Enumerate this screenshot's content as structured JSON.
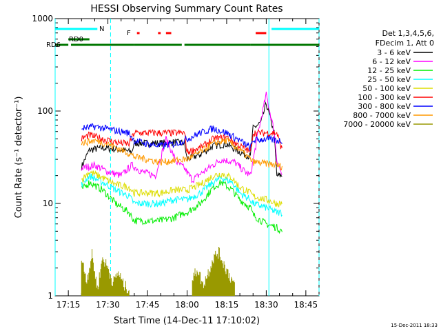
{
  "chart_data": {
    "type": "line",
    "title": "HESSI Observing Summary Count Rates",
    "xlabel": "Start Time (14-Dec-11 17:10:02)",
    "ylabel": "Count Rate (s⁻¹ detector⁻¹)",
    "yscale": "log",
    "ylim": [
      1,
      1000
    ],
    "xlim": [
      "17:10",
      "18:50"
    ],
    "x_ticks": [
      "17:15",
      "17:30",
      "17:45",
      "18:00",
      "18:15",
      "18:30",
      "18:45"
    ],
    "y_ticks": [
      "1",
      "10",
      "100",
      "1000"
    ],
    "x_tick_minutes": [
      1035,
      1050,
      1065,
      1080,
      1095,
      1110,
      1125
    ],
    "data_interval": [
      "17:20",
      "18:37"
    ],
    "legend_title": [
      "Det 1,3,4,5,6,",
      "FDecim 1, Att 0"
    ],
    "series": [
      {
        "name": "3 - 6 keV",
        "color": "#000000",
        "x": [
          "17:20",
          "17:23",
          "17:28",
          "17:35",
          "17:39",
          "17:40",
          "17:45",
          "17:50",
          "17:55",
          "17:59",
          "18:00",
          "18:05",
          "18:10",
          "18:15",
          "18:20",
          "18:24",
          "18:25",
          "18:28",
          "18:30",
          "18:33",
          "18:34",
          "18:36"
        ],
        "y": [
          25,
          38,
          40,
          38,
          36,
          45,
          45,
          45,
          46,
          45,
          30,
          34,
          42,
          44,
          36,
          32,
          65,
          75,
          120,
          58,
          20,
          20
        ]
      },
      {
        "name": "6 - 12 keV",
        "color": "#ff00ff",
        "x": [
          "17:20",
          "17:25",
          "17:30",
          "17:35",
          "17:39",
          "17:43",
          "17:48",
          "17:52",
          "17:56",
          "17:59",
          "18:02",
          "18:08",
          "18:13",
          "18:18",
          "18:22",
          "18:24",
          "18:27",
          "18:30",
          "18:33",
          "18:34",
          "18:36"
        ],
        "y": [
          24,
          26,
          22,
          20,
          26,
          22,
          20,
          50,
          28,
          24,
          18,
          24,
          30,
          28,
          22,
          20,
          60,
          150,
          60,
          30,
          20
        ]
      },
      {
        "name": "12 - 25 keV",
        "color": "#00ee00",
        "x": [
          "17:20",
          "17:23",
          "17:28",
          "17:33",
          "17:38",
          "17:40",
          "17:45",
          "17:50",
          "17:55",
          "17:59",
          "18:00",
          "18:05",
          "18:10",
          "18:13",
          "18:17",
          "18:20",
          "18:24",
          "18:25",
          "18:30",
          "18:34",
          "18:36"
        ],
        "y": [
          14,
          17,
          14,
          10,
          8,
          6.5,
          6.5,
          6.5,
          7,
          8,
          8,
          10,
          15,
          17,
          14,
          11,
          9,
          7.5,
          6,
          5.5,
          5
        ]
      },
      {
        "name": "25 - 50 keV",
        "color": "#00ffff",
        "x": [
          "17:20",
          "17:23",
          "17:28",
          "17:33",
          "17:38",
          "17:40",
          "17:45",
          "17:50",
          "17:55",
          "17:59",
          "18:00",
          "18:05",
          "18:10",
          "18:13",
          "18:17",
          "18:20",
          "18:24",
          "18:25",
          "18:30",
          "18:34",
          "18:36"
        ],
        "y": [
          16,
          20,
          17,
          14,
          12,
          10,
          10,
          10,
          11,
          11,
          11,
          13,
          17,
          19,
          17,
          13,
          11,
          10,
          9,
          8,
          8
        ]
      },
      {
        "name": "50 - 100 keV",
        "color": "#dddd00",
        "x": [
          "17:20",
          "17:23",
          "17:28",
          "17:33",
          "17:38",
          "17:40",
          "17:45",
          "17:50",
          "17:55",
          "17:59",
          "18:00",
          "18:05",
          "18:10",
          "18:13",
          "18:17",
          "18:20",
          "18:24",
          "18:25",
          "18:30",
          "18:34",
          "18:36"
        ],
        "y": [
          18,
          22,
          19,
          16,
          15,
          13,
          13,
          13,
          14,
          14,
          14,
          16,
          20,
          21,
          19,
          15,
          13,
          12,
          11,
          10,
          10
        ]
      },
      {
        "name": "100 - 300 keV",
        "color": "#ff0000",
        "x": [
          "17:20",
          "17:23",
          "17:28",
          "17:33",
          "17:38",
          "17:40",
          "17:50",
          "17:59",
          "18:00",
          "18:05",
          "18:10",
          "18:15",
          "18:20",
          "18:24",
          "18:25",
          "18:34",
          "18:36"
        ],
        "y": [
          50,
          55,
          50,
          46,
          44,
          58,
          58,
          58,
          36,
          40,
          50,
          52,
          42,
          36,
          58,
          58,
          38
        ]
      },
      {
        "name": "300 - 800 keV",
        "color": "#0000ff",
        "x": [
          "17:20",
          "17:25",
          "17:30",
          "17:35",
          "17:38",
          "17:40",
          "17:45",
          "17:50",
          "17:55",
          "17:59",
          "18:00",
          "18:05",
          "18:10",
          "18:15",
          "18:20",
          "18:24",
          "18:25",
          "18:30",
          "18:34",
          "18:36"
        ],
        "y": [
          65,
          68,
          64,
          60,
          58,
          48,
          44,
          42,
          44,
          48,
          50,
          58,
          65,
          58,
          48,
          40,
          48,
          50,
          48,
          48
        ]
      },
      {
        "name": "800 - 7000 keV",
        "color": "#ff9900",
        "x": [
          "17:20",
          "17:25",
          "17:30",
          "17:35",
          "17:38",
          "17:40",
          "17:45",
          "17:50",
          "17:55",
          "17:59",
          "18:00",
          "18:05",
          "18:10",
          "18:15",
          "18:20",
          "18:24",
          "18:25",
          "18:30",
          "18:34",
          "18:36"
        ],
        "y": [
          45,
          48,
          44,
          38,
          35,
          32,
          30,
          28,
          29,
          30,
          30,
          36,
          45,
          48,
          38,
          30,
          28,
          27,
          26,
          25
        ]
      },
      {
        "name": "7000 - 20000 keV",
        "color": "#999900",
        "x": [
          "17:20",
          "17:22",
          "17:24",
          "17:26",
          "17:28",
          "17:30",
          "17:32",
          "17:34",
          "17:36",
          "17:38",
          "18:02",
          "18:04",
          "18:06",
          "18:08",
          "18:10",
          "18:12",
          "18:14",
          "18:16",
          "18:18"
        ],
        "y": [
          2.5,
          1.5,
          2.8,
          1.2,
          2.6,
          2,
          1.4,
          1.8,
          1.3,
          1.2,
          1.5,
          2,
          1.3,
          1.8,
          2.6,
          3,
          2.2,
          1.7,
          1.3
        ]
      }
    ],
    "flags": [
      {
        "label": "N",
        "color": "#00ffff",
        "segments": [
          [
            "17:10",
            "17:26"
          ],
          [
            "18:32",
            "18:50"
          ]
        ]
      },
      {
        "label": "F",
        "color": "#ff0000",
        "segments": [
          [
            "17:41",
            "17:42"
          ],
          [
            "17:49",
            "17:50"
          ],
          [
            "17:52",
            "17:54"
          ],
          [
            "18:26",
            "18:30"
          ]
        ]
      },
      {
        "label": "RD0",
        "color": "#007700",
        "segments": [
          [
            "17:15",
            "17:23"
          ]
        ]
      },
      {
        "label": "RD6",
        "color": "#007700",
        "segments": [
          [
            "17:10",
            "17:15"
          ],
          [
            "17:16",
            "17:40"
          ],
          [
            "17:40",
            "17:58"
          ],
          [
            "17:59",
            "18:24"
          ],
          [
            "18:24",
            "18:50"
          ]
        ]
      }
    ],
    "vlines": [
      {
        "time": "17:10",
        "color": "#00ffff",
        "style": "solid"
      },
      {
        "time": "17:31",
        "color": "#00ffff",
        "style": "dashed"
      },
      {
        "time": "18:31",
        "color": "#00ffff",
        "style": "solid"
      },
      {
        "time": "18:54",
        "color": "#00ffff",
        "style": "dashed"
      }
    ],
    "grid": false,
    "legend_position": "right"
  },
  "footer_timestamp": "15-Dec-2011 18:33"
}
